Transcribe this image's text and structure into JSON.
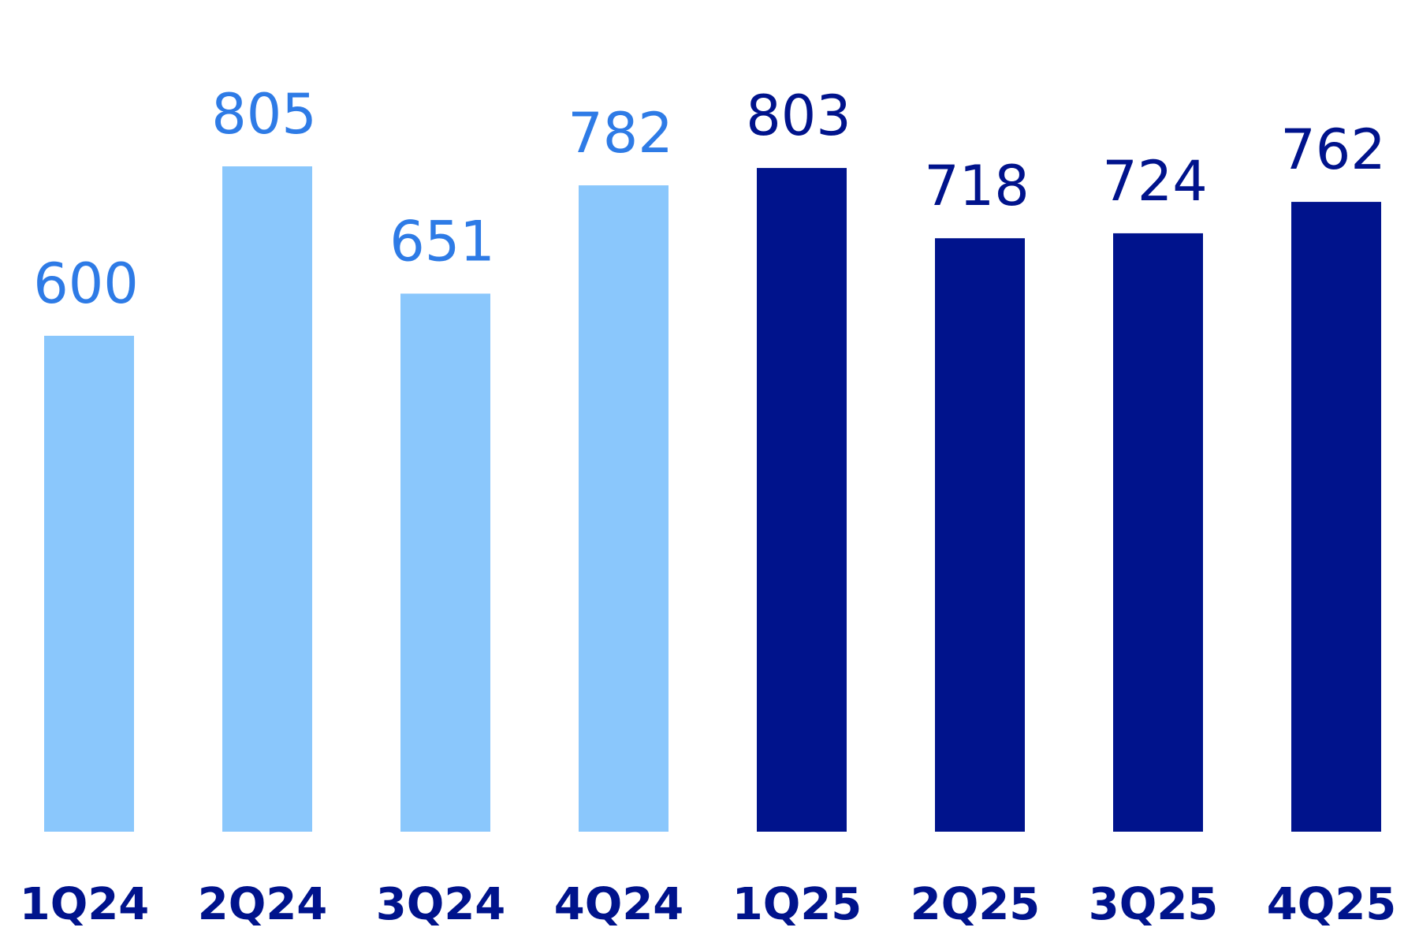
{
  "chart_data": {
    "type": "bar",
    "categories": [
      "1Q24",
      "2Q24",
      "3Q24",
      "4Q24",
      "1Q25",
      "2Q25",
      "3Q25",
      "4Q25"
    ],
    "values": [
      600,
      805,
      651,
      782,
      803,
      718,
      724,
      762
    ],
    "title": "",
    "xlabel": "",
    "ylabel": "",
    "ylim": [
      0,
      805
    ],
    "grid": false,
    "legend": "none"
  },
  "colors": {
    "bar_2024": "#8AC7FC",
    "bar_2025": "#00138C",
    "label_2024": "#2E7BE6",
    "label_2025": "#00138C",
    "category_text": "#00138C"
  }
}
